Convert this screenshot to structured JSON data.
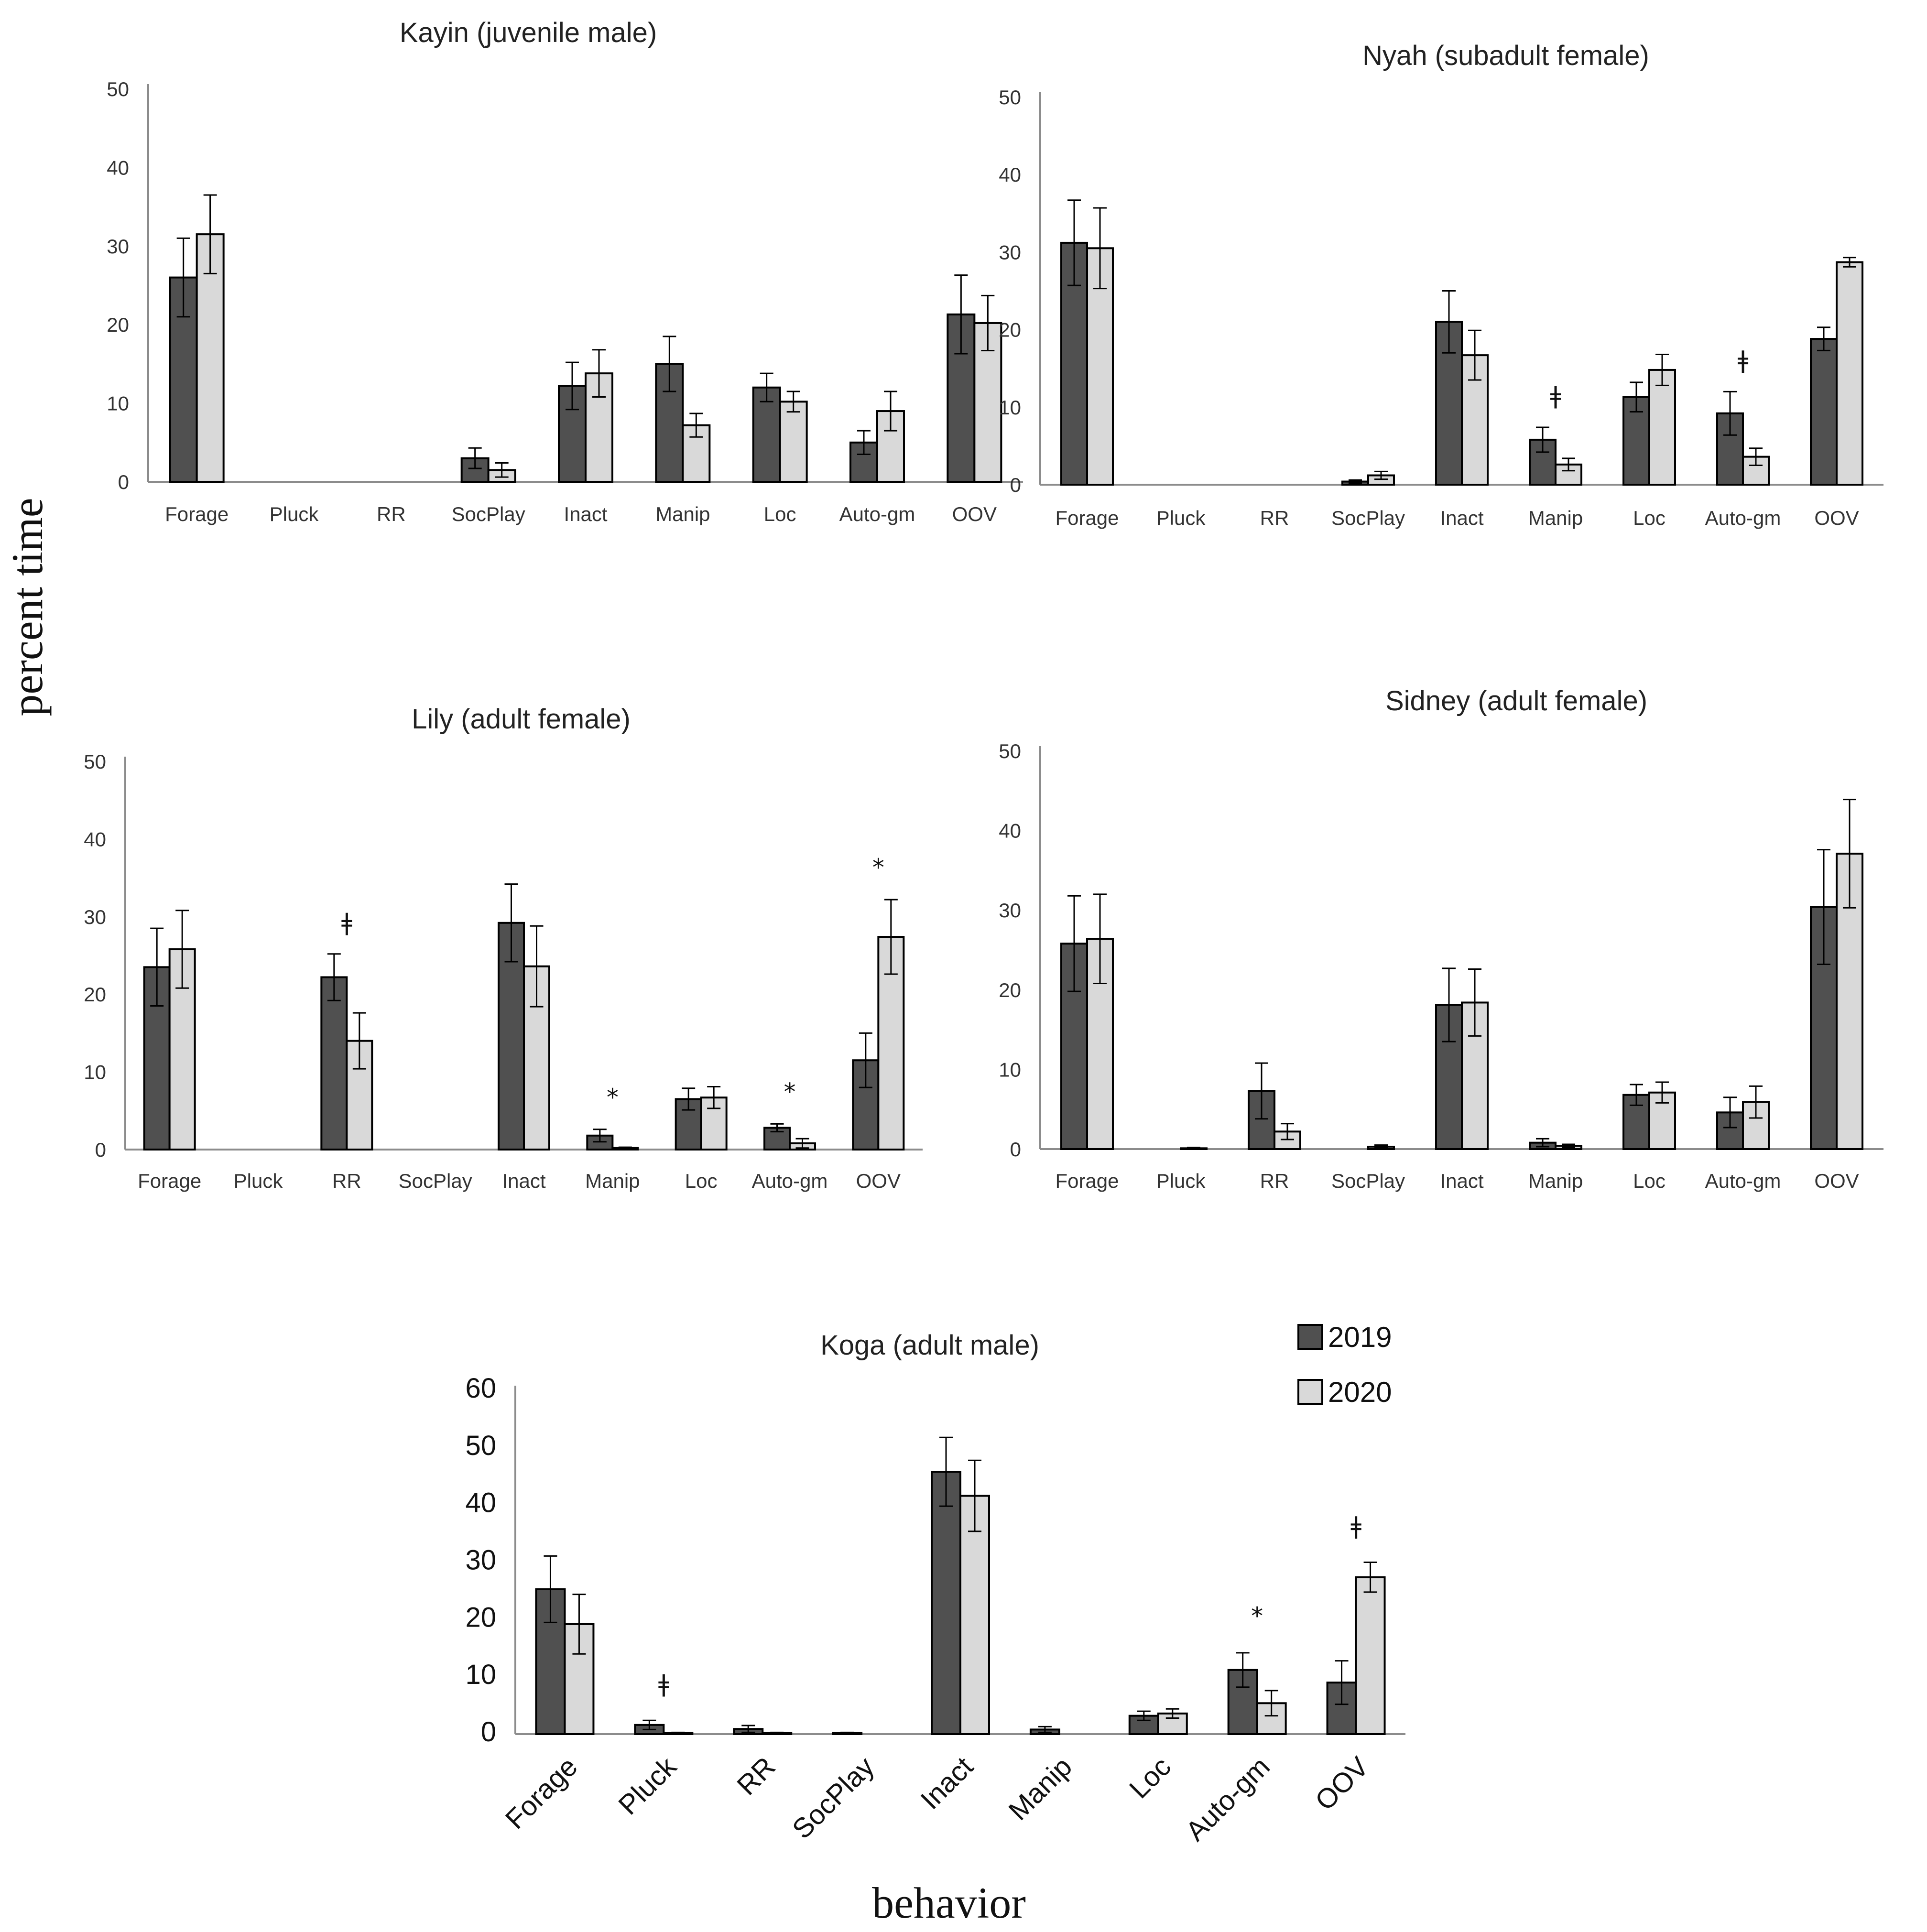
{
  "colors": {
    "y2019": "#505050",
    "y2020": "#d9d9d9",
    "stroke": "#000000",
    "axis": "#8c8c8c"
  },
  "axis_labels": {
    "y": "percent time",
    "x": "behavior"
  },
  "legend": [
    {
      "key": "y2019",
      "label": "2019"
    },
    {
      "key": "y2020",
      "label": "2020"
    }
  ],
  "chart_data": [
    {
      "type": "bar",
      "title": "Kayin (juvenile male)",
      "categories": [
        "Forage",
        "Pluck",
        "RR",
        "SocPlay",
        "Inact",
        "Manip",
        "Loc",
        "Auto-gm",
        "OOV"
      ],
      "ylim": [
        0,
        50
      ],
      "yticks": [
        0,
        10,
        20,
        30,
        40,
        50
      ],
      "series": [
        {
          "name": "2019",
          "values": [
            26,
            0,
            0,
            3,
            12.2,
            15,
            12,
            5,
            21.3
          ],
          "errors": [
            5,
            0,
            0,
            1.3,
            3,
            3.5,
            1.8,
            1.5,
            5
          ]
        },
        {
          "name": "2020",
          "values": [
            31.5,
            0,
            0,
            1.5,
            13.8,
            7.2,
            10.2,
            9,
            20.2
          ],
          "errors": [
            5,
            0,
            0,
            0.9,
            3,
            1.5,
            1.3,
            2.5,
            3.5
          ]
        }
      ],
      "annotations": []
    },
    {
      "type": "bar",
      "title": "Nyah (subadult female)",
      "categories": [
        "Forage",
        "Pluck",
        "RR",
        "SocPlay",
        "Inact",
        "Manip",
        "Loc",
        "Auto-gm",
        "OOV"
      ],
      "ylim": [
        0,
        50
      ],
      "yticks": [
        0,
        10,
        20,
        30,
        40,
        50
      ],
      "series": [
        {
          "name": "2019",
          "values": [
            31.2,
            0,
            0,
            0.4,
            21,
            5.8,
            11.3,
            9.2,
            18.8
          ],
          "errors": [
            5.5,
            0,
            0,
            0.2,
            4,
            1.6,
            1.9,
            2.8,
            1.5
          ]
        },
        {
          "name": "2020",
          "values": [
            30.5,
            0,
            0,
            1.2,
            16.7,
            2.6,
            14.8,
            3.6,
            28.7
          ],
          "errors": [
            5.2,
            0,
            0,
            0.5,
            3.2,
            0.8,
            2,
            1.1,
            0.6
          ]
        }
      ],
      "annotations": [
        {
          "category": "Manip",
          "symbol": "ǂ"
        },
        {
          "category": "Auto-gm",
          "symbol": "ǂ"
        }
      ]
    },
    {
      "type": "bar",
      "title": "Lily (adult female)",
      "categories": [
        "Forage",
        "Pluck",
        "RR",
        "SocPlay",
        "Inact",
        "Manip",
        "Loc",
        "Auto-gm",
        "OOV"
      ],
      "ylim": [
        0,
        50
      ],
      "yticks": [
        0,
        10,
        20,
        30,
        40,
        50
      ],
      "series": [
        {
          "name": "2019",
          "values": [
            23.5,
            0,
            22.2,
            0,
            29.2,
            1.8,
            6.5,
            2.8,
            11.5
          ],
          "errors": [
            5,
            0,
            3,
            0,
            5,
            0.8,
            1.4,
            0.5,
            3.5
          ]
        },
        {
          "name": "2020",
          "values": [
            25.8,
            0,
            14,
            0,
            23.6,
            0.2,
            6.7,
            0.8,
            27.4
          ],
          "errors": [
            5,
            0,
            3.6,
            0,
            5.2,
            0.1,
            1.4,
            0.6,
            4.8
          ]
        }
      ],
      "annotations": [
        {
          "category": "RR",
          "symbol": "ǂ"
        },
        {
          "category": "Manip",
          "symbol": "*"
        },
        {
          "category": "Auto-gm",
          "symbol": "*"
        },
        {
          "category": "OOV",
          "symbol": "*"
        }
      ]
    },
    {
      "type": "bar",
      "title": "Sidney (adult female)",
      "categories": [
        "Forage",
        "Pluck",
        "RR",
        "SocPlay",
        "Inact",
        "Manip",
        "Loc",
        "Auto-gm",
        "OOV"
      ],
      "ylim": [
        0,
        50
      ],
      "yticks": [
        0,
        10,
        20,
        30,
        40,
        50
      ],
      "series": [
        {
          "name": "2019",
          "values": [
            25.8,
            0,
            7.3,
            0,
            18.1,
            0.8,
            6.8,
            4.6,
            30.4
          ],
          "errors": [
            6,
            0,
            3.5,
            0,
            4.6,
            0.5,
            1.3,
            1.9,
            7.2
          ]
        },
        {
          "name": "2020",
          "values": [
            26.4,
            0.1,
            2.2,
            0.3,
            18.4,
            0.4,
            7.1,
            5.9,
            37.1
          ],
          "errors": [
            5.6,
            0.1,
            1,
            0.2,
            4.2,
            0.2,
            1.3,
            2,
            6.8
          ]
        }
      ],
      "annotations": []
    },
    {
      "type": "bar",
      "title": "Koga (adult male)",
      "categories": [
        "Forage",
        "Pluck",
        "RR",
        "SocPlay",
        "Inact",
        "Manip",
        "Loc",
        "Auto-gm",
        "OOV"
      ],
      "ylim": [
        0,
        60
      ],
      "yticks": [
        0,
        10,
        20,
        30,
        40,
        50,
        60
      ],
      "series": [
        {
          "name": "2019",
          "values": [
            25.3,
            1.6,
            0.9,
            0.2,
            45.8,
            0.8,
            3.2,
            11.2,
            9
          ],
          "errors": [
            5.8,
            0.8,
            0.6,
            0.1,
            6,
            0.5,
            0.8,
            3,
            3.8
          ]
        },
        {
          "name": "2020",
          "values": [
            19.2,
            0.2,
            0.2,
            0,
            41.6,
            0,
            3.6,
            5.4,
            27.4
          ],
          "errors": [
            5.2,
            0.1,
            0.1,
            0,
            6.2,
            0,
            0.8,
            2.2,
            2.6
          ]
        }
      ],
      "annotations": [
        {
          "category": "Pluck",
          "symbol": "ǂ"
        },
        {
          "category": "Auto-gm",
          "symbol": "*"
        },
        {
          "category": "OOV",
          "symbol": "ǂ"
        }
      ]
    }
  ]
}
